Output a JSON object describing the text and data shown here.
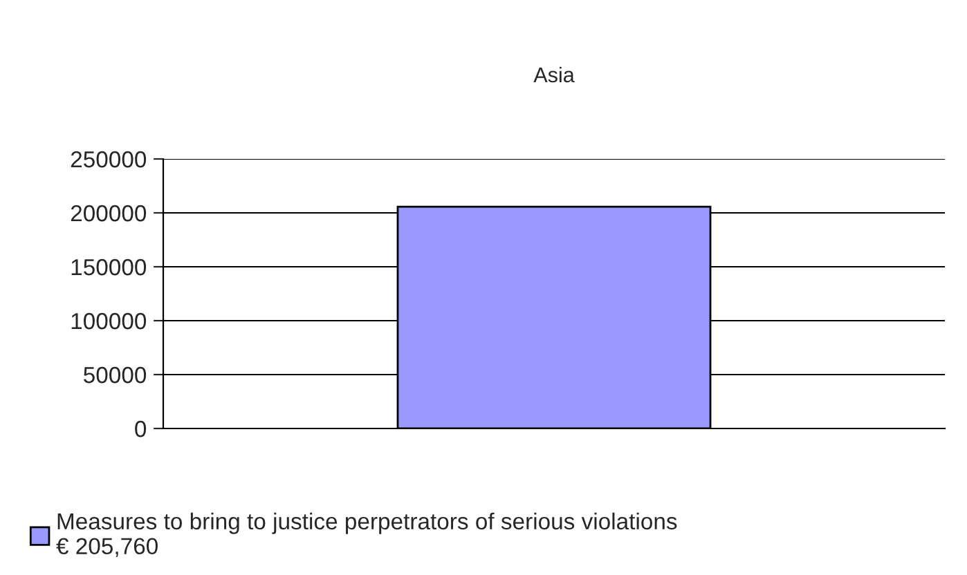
{
  "chart_data": {
    "type": "bar",
    "title": "Asia",
    "categories": [
      null
    ],
    "series": [
      {
        "name": "Measures to bring to justice perpetrators of serious violations\n€ 205,760",
        "color": "#9999ff",
        "values": [
          205760
        ]
      }
    ],
    "ylim": [
      0,
      250000
    ],
    "yticks": [
      0,
      50000,
      100000,
      150000,
      200000,
      250000
    ],
    "grid": "y",
    "legend": "bottom left",
    "tick_labels": "y"
  }
}
